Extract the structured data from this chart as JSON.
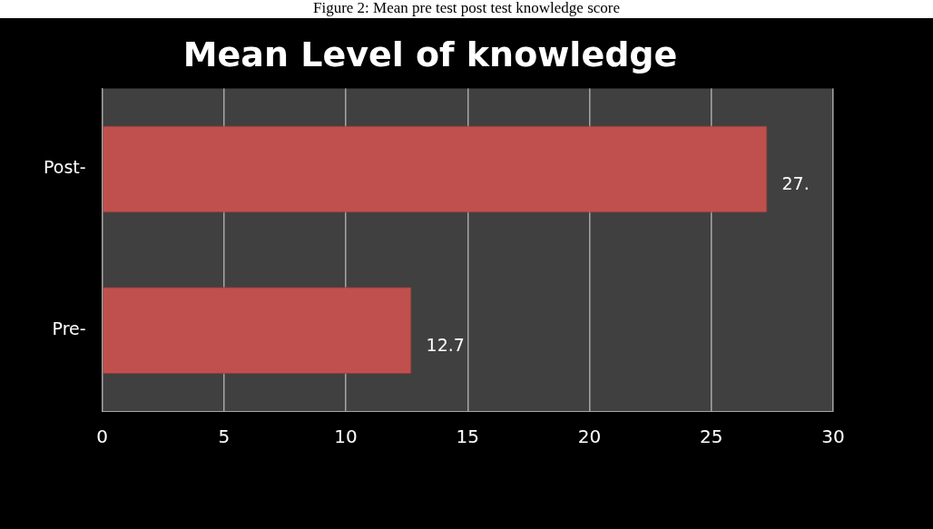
{
  "chart_data": {
    "type": "bar",
    "orientation": "horizontal",
    "title": "Mean Level of knowledge",
    "annotations": [
      "Figure 2: Mean pre test post test knowledge score"
    ],
    "categories": [
      "Post-",
      "Pre-"
    ],
    "values": [
      27.3,
      12.7
    ],
    "color": "#c0504d",
    "value_labels": [
      "27.",
      "12.7"
    ],
    "xlim": [
      0,
      30
    ],
    "xticks": [
      0,
      5,
      10,
      15,
      20,
      25,
      30
    ],
    "grid": "x",
    "legend": false
  }
}
